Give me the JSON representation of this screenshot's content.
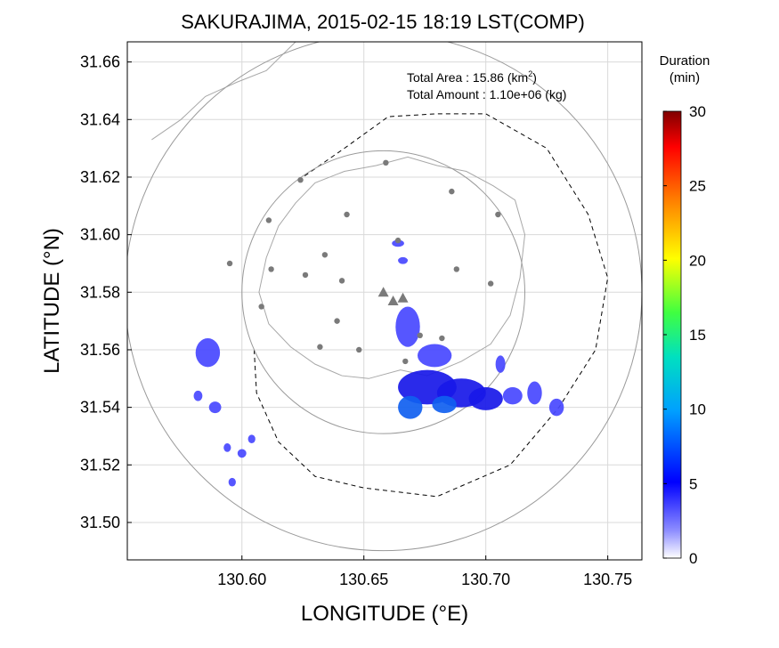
{
  "chart_data": {
    "type": "heatmap",
    "title": "SAKURAJIMA, 2015-02-15 18:19 LST(COMP)",
    "xlabel": "LONGITUDE (°E)",
    "ylabel": "LATITUDE (°N)",
    "xlim": [
      130.553,
      130.764
    ],
    "ylim": [
      31.487,
      31.667
    ],
    "x_ticks": [
      130.6,
      130.65,
      130.7,
      130.75
    ],
    "x_tick_labels": [
      "130.60",
      "130.65",
      "130.70",
      "130.75"
    ],
    "y_ticks": [
      31.5,
      31.52,
      31.54,
      31.56,
      31.58,
      31.6,
      31.62,
      31.64,
      31.66
    ],
    "y_tick_labels": [
      "31.50",
      "31.52",
      "31.54",
      "31.56",
      "31.58",
      "31.60",
      "31.62",
      "31.64",
      "31.66"
    ],
    "grid": true,
    "annotations": {
      "area_label": "Total Area   : 15.86 (km",
      "area_sup": "2",
      "area_close": ")",
      "amount_label": "Total Amount : 1.10e+06 (kg)"
    },
    "colorbar": {
      "title_line1": "Duration",
      "title_line2": "(min)",
      "range": [
        0,
        30
      ],
      "ticks": [
        0,
        5,
        10,
        15,
        20,
        25,
        30
      ],
      "tick_labels": [
        "0",
        "5",
        "10",
        "15",
        "20",
        "25",
        "30"
      ]
    },
    "range_rings": [
      {
        "center": [
          130.658,
          31.58
        ],
        "radius_deg_lon": 0.058
      },
      {
        "center": [
          130.658,
          31.58
        ],
        "radius_deg_lon": 0.106
      }
    ],
    "stations": [
      [
        130.624,
        31.619
      ],
      [
        130.659,
        31.625
      ],
      [
        130.686,
        31.615
      ],
      [
        130.705,
        31.607
      ],
      [
        130.611,
        31.605
      ],
      [
        130.643,
        31.607
      ],
      [
        130.664,
        31.598
      ],
      [
        130.595,
        31.59
      ],
      [
        130.612,
        31.588
      ],
      [
        130.626,
        31.586
      ],
      [
        130.634,
        31.593
      ],
      [
        130.641,
        31.584
      ],
      [
        130.688,
        31.588
      ],
      [
        130.702,
        31.583
      ],
      [
        130.608,
        31.575
      ],
      [
        130.639,
        31.57
      ],
      [
        130.632,
        31.561
      ],
      [
        130.648,
        31.56
      ],
      [
        130.667,
        31.556
      ],
      [
        130.673,
        31.565
      ],
      [
        130.682,
        31.564
      ]
    ],
    "vents": [
      [
        130.658,
        31.58
      ],
      [
        130.662,
        31.577
      ],
      [
        130.666,
        31.578
      ]
    ],
    "ash_cells": [
      {
        "lon": 130.586,
        "lat": 31.559,
        "rx": 0.005,
        "ry": 0.005,
        "value": 4
      },
      {
        "lon": 130.582,
        "lat": 31.544,
        "rx": 0.0018,
        "ry": 0.0018,
        "value": 4
      },
      {
        "lon": 130.589,
        "lat": 31.54,
        "rx": 0.0025,
        "ry": 0.002,
        "value": 4
      },
      {
        "lon": 130.594,
        "lat": 31.526,
        "rx": 0.0015,
        "ry": 0.0015,
        "value": 4
      },
      {
        "lon": 130.6,
        "lat": 31.524,
        "rx": 0.0018,
        "ry": 0.0015,
        "value": 4
      },
      {
        "lon": 130.604,
        "lat": 31.529,
        "rx": 0.0015,
        "ry": 0.0015,
        "value": 4
      },
      {
        "lon": 130.596,
        "lat": 31.514,
        "rx": 0.0015,
        "ry": 0.0015,
        "value": 4
      },
      {
        "lon": 130.664,
        "lat": 31.597,
        "rx": 0.0025,
        "ry": 0.0012,
        "value": 4
      },
      {
        "lon": 130.666,
        "lat": 31.591,
        "rx": 0.002,
        "ry": 0.0012,
        "value": 4
      },
      {
        "lon": 130.668,
        "lat": 31.568,
        "rx": 0.005,
        "ry": 0.007,
        "value": 5
      },
      {
        "lon": 130.679,
        "lat": 31.558,
        "rx": 0.007,
        "ry": 0.004,
        "value": 5
      },
      {
        "lon": 130.676,
        "lat": 31.547,
        "rx": 0.012,
        "ry": 0.006,
        "value": 6
      },
      {
        "lon": 130.69,
        "lat": 31.545,
        "rx": 0.01,
        "ry": 0.005,
        "value": 7
      },
      {
        "lon": 130.7,
        "lat": 31.543,
        "rx": 0.007,
        "ry": 0.004,
        "value": 6
      },
      {
        "lon": 130.669,
        "lat": 31.54,
        "rx": 0.005,
        "ry": 0.004,
        "value": 8
      },
      {
        "lon": 130.683,
        "lat": 31.541,
        "rx": 0.005,
        "ry": 0.003,
        "value": 8
      },
      {
        "lon": 130.711,
        "lat": 31.544,
        "rx": 0.004,
        "ry": 0.003,
        "value": 5
      },
      {
        "lon": 130.72,
        "lat": 31.545,
        "rx": 0.003,
        "ry": 0.004,
        "value": 5
      },
      {
        "lon": 130.729,
        "lat": 31.54,
        "rx": 0.003,
        "ry": 0.003,
        "value": 5
      },
      {
        "lon": 130.706,
        "lat": 31.555,
        "rx": 0.002,
        "ry": 0.003,
        "value": 4
      }
    ]
  }
}
